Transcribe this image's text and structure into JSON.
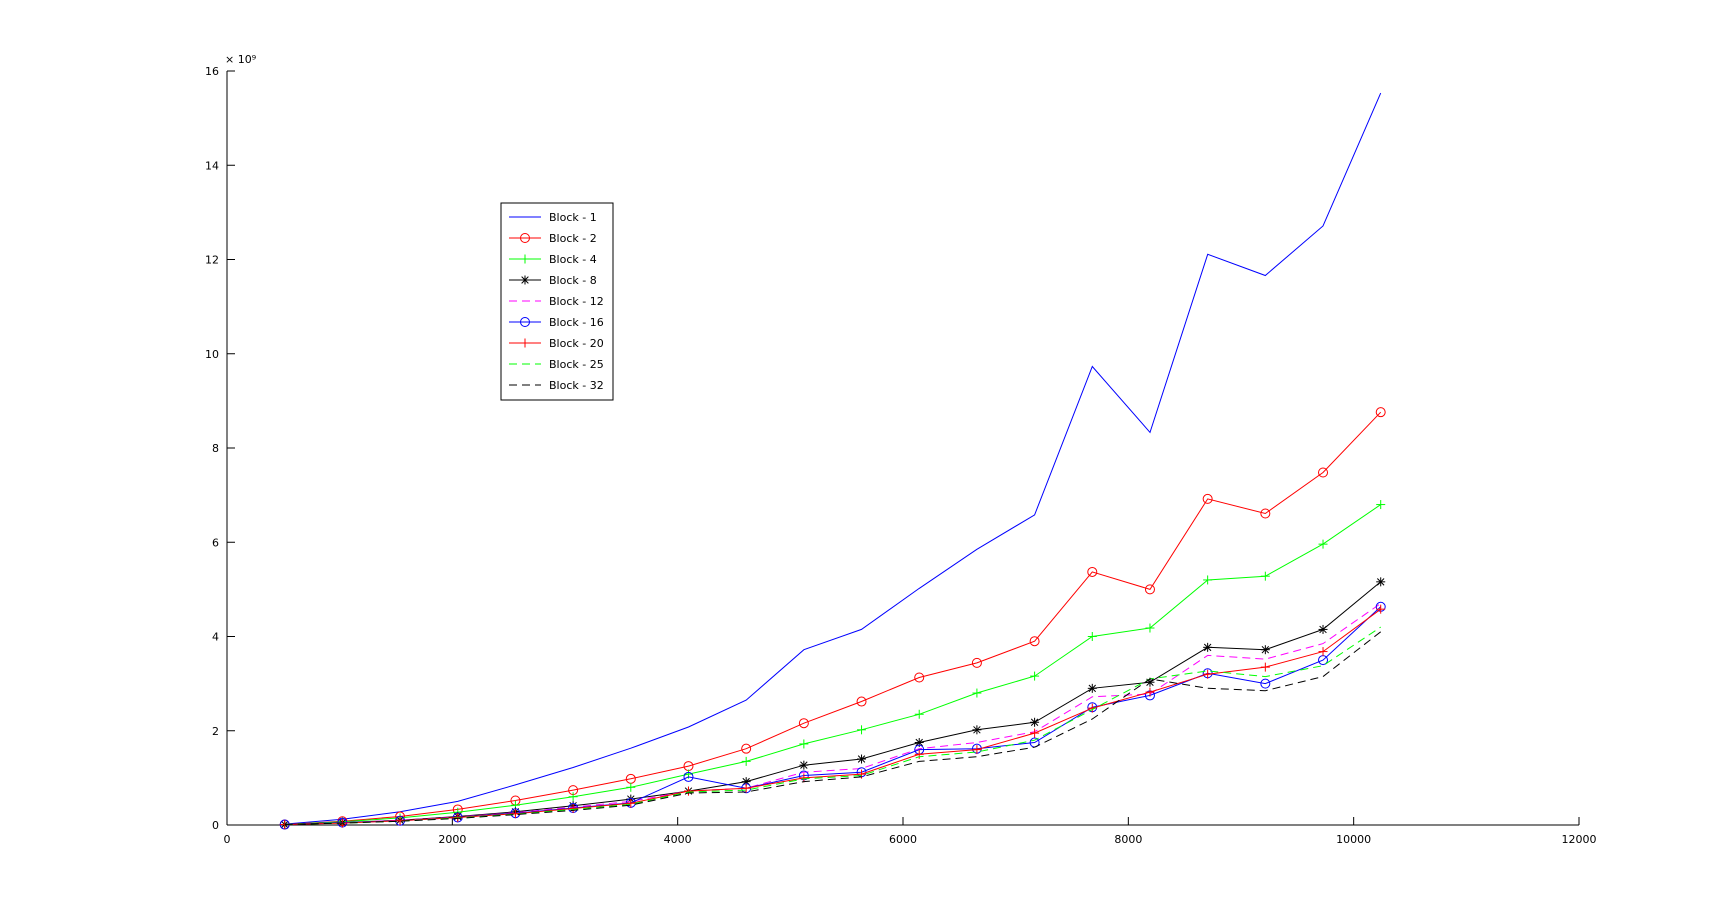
{
  "chart_data": {
    "type": "line",
    "title": "",
    "xlabel": "",
    "ylabel": "",
    "xlim": [
      0,
      12000
    ],
    "ylim": [
      0,
      16
    ],
    "y_exponent_label": "× 10⁹",
    "xticks": [
      0,
      2000,
      4000,
      6000,
      8000,
      10000,
      12000
    ],
    "yticks": [
      0,
      2,
      4,
      6,
      8,
      10,
      12,
      14,
      16
    ],
    "grid": false,
    "legend_position": "upper-left",
    "x": [
      512,
      1024,
      1536,
      2048,
      2560,
      3072,
      3584,
      4096,
      4608,
      5120,
      5632,
      6144,
      6656,
      7168,
      7680,
      8192,
      8704,
      9216,
      9728,
      10240
    ],
    "series": [
      {
        "name": "Block - 1",
        "color": "#0000ff",
        "dash": "solid",
        "marker": "none",
        "values": [
          0.02,
          0.12,
          0.28,
          0.5,
          0.85,
          1.22,
          1.63,
          2.08,
          2.65,
          3.72,
          4.15,
          5.02,
          5.85,
          6.58,
          9.73,
          8.33,
          12.11,
          11.66,
          12.71,
          15.53
        ]
      },
      {
        "name": "Block - 2",
        "color": "#ff0000",
        "dash": "solid",
        "marker": "circle",
        "values": [
          0.01,
          0.08,
          0.18,
          0.33,
          0.52,
          0.74,
          0.98,
          1.25,
          1.62,
          2.16,
          2.62,
          3.13,
          3.44,
          3.9,
          5.37,
          5.0,
          6.92,
          6.61,
          7.48,
          8.76
        ]
      },
      {
        "name": "Block - 4",
        "color": "#00ff00",
        "dash": "solid",
        "marker": "plus",
        "values": [
          0.01,
          0.07,
          0.15,
          0.27,
          0.42,
          0.6,
          0.8,
          1.08,
          1.35,
          1.72,
          2.02,
          2.35,
          2.8,
          3.16,
          4.0,
          4.18,
          5.2,
          5.28,
          5.96,
          6.8
        ]
      },
      {
        "name": "Block - 8",
        "color": "#000000",
        "dash": "solid",
        "marker": "star",
        "values": [
          0.01,
          0.05,
          0.1,
          0.18,
          0.28,
          0.41,
          0.55,
          0.72,
          0.92,
          1.27,
          1.4,
          1.75,
          2.02,
          2.18,
          2.9,
          3.03,
          3.77,
          3.72,
          4.15,
          5.16
        ]
      },
      {
        "name": "Block - 12",
        "color": "#ff00ff",
        "dash": "dashed",
        "marker": "none",
        "values": [
          0.01,
          0.05,
          0.1,
          0.17,
          0.26,
          0.38,
          0.5,
          0.72,
          0.78,
          1.12,
          1.2,
          1.62,
          1.75,
          1.98,
          2.72,
          2.78,
          3.6,
          3.52,
          3.85,
          4.7
        ]
      },
      {
        "name": "Block - 16",
        "color": "#0000ff",
        "dash": "solid",
        "marker": "circle",
        "values": [
          0.01,
          0.05,
          0.09,
          0.16,
          0.25,
          0.36,
          0.47,
          1.02,
          0.78,
          1.05,
          1.12,
          1.6,
          1.62,
          1.75,
          2.5,
          2.75,
          3.22,
          3.0,
          3.5,
          4.63
        ]
      },
      {
        "name": "Block - 20",
        "color": "#ff0000",
        "dash": "solid",
        "marker": "plus",
        "values": [
          0.01,
          0.04,
          0.09,
          0.16,
          0.24,
          0.35,
          0.46,
          0.72,
          0.78,
          1.0,
          1.08,
          1.5,
          1.6,
          1.95,
          2.48,
          2.82,
          3.2,
          3.35,
          3.68,
          4.58
        ]
      },
      {
        "name": "Block - 25",
        "color": "#00ff00",
        "dash": "dashed",
        "marker": "none",
        "values": [
          0.01,
          0.04,
          0.08,
          0.15,
          0.23,
          0.33,
          0.44,
          0.7,
          0.74,
          0.98,
          1.05,
          1.45,
          1.55,
          1.8,
          2.45,
          3.1,
          3.27,
          3.15,
          3.38,
          4.2
        ]
      },
      {
        "name": "Block - 32",
        "color": "#000000",
        "dash": "dashed",
        "marker": "none",
        "values": [
          0.01,
          0.04,
          0.08,
          0.14,
          0.22,
          0.31,
          0.42,
          0.68,
          0.7,
          0.92,
          1.02,
          1.35,
          1.45,
          1.65,
          2.25,
          3.1,
          2.9,
          2.85,
          3.15,
          4.1
        ]
      }
    ]
  }
}
